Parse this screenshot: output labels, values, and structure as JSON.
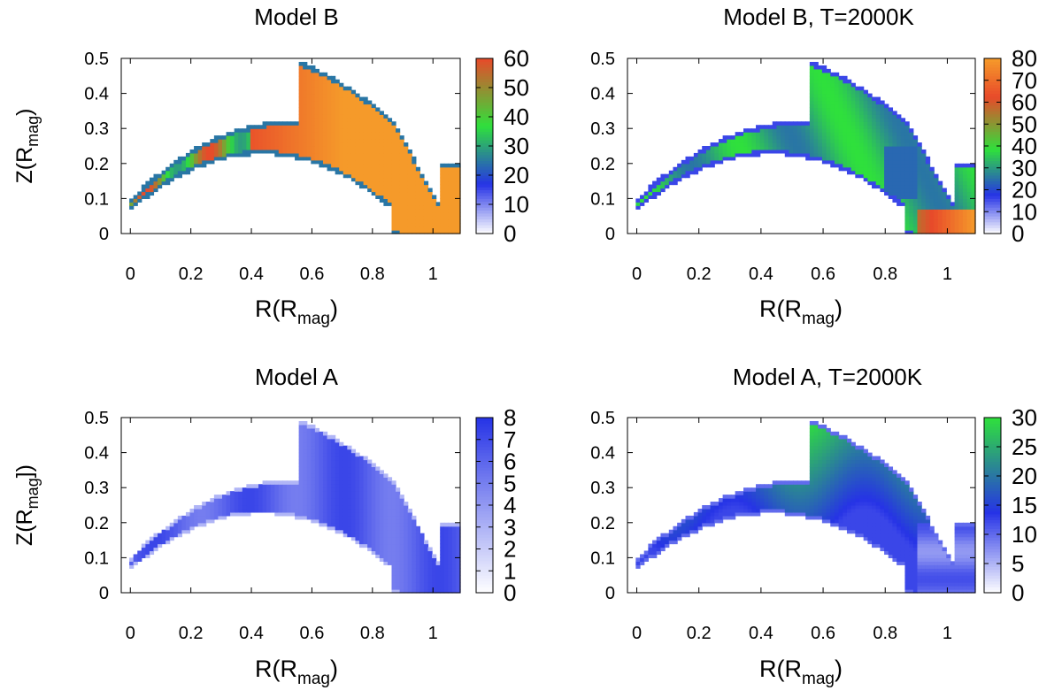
{
  "chart_data": [
    {
      "type": "heatmap",
      "title": "Model B",
      "xlabel": {
        "base": "R(R",
        "sub": "mag",
        "close": ")"
      },
      "ylabel": {
        "base": "Z(R",
        "sub": "mag",
        "close": ")"
      },
      "xlim": [
        -0.03,
        1.09
      ],
      "ylim": [
        0,
        0.5
      ],
      "xticks": [
        "0",
        "0.2",
        "0.4",
        "0.6",
        "0.8",
        "1"
      ],
      "yticks": [
        "0",
        "0.1",
        "0.2",
        "0.3",
        "0.4",
        "0.5"
      ],
      "colorbar": {
        "min": 0,
        "max": 60,
        "ticks": [
          "0",
          "10",
          "20",
          "30",
          "40",
          "50",
          "60"
        ]
      },
      "field": "modelB"
    },
    {
      "type": "heatmap",
      "title": "Model B, T=2000K",
      "xlabel": {
        "base": "R(R",
        "sub": "mag",
        "close": ")"
      },
      "ylabel": {
        "base": "",
        "sub": "",
        "close": ""
      },
      "xlim": [
        -0.03,
        1.09
      ],
      "ylim": [
        0,
        0.5
      ],
      "xticks": [
        "0",
        "0.2",
        "0.4",
        "0.6",
        "0.8",
        "1"
      ],
      "yticks": [
        "0",
        "0.1",
        "0.2",
        "0.3",
        "0.4",
        "0.5"
      ],
      "colorbar": {
        "min": 0,
        "max": 80,
        "ticks": [
          "0",
          "10",
          "20",
          "30",
          "40",
          "50",
          "60",
          "70",
          "80"
        ]
      },
      "field": "modelBT"
    },
    {
      "type": "heatmap",
      "title": "Model A",
      "xlabel": {
        "base": "R(R",
        "sub": "mag",
        "close": ")"
      },
      "ylabel": {
        "base": "Z(R",
        "sub": "mag",
        "close": "])"
      },
      "xlim": [
        -0.03,
        1.09
      ],
      "ylim": [
        0,
        0.5
      ],
      "xticks": [
        "0",
        "0.2",
        "0.4",
        "0.6",
        "0.8",
        "1"
      ],
      "yticks": [
        "0",
        "0.1",
        "0.2",
        "0.3",
        "0.4",
        "0.5"
      ],
      "colorbar": {
        "min": 0,
        "max": 8,
        "ticks": [
          "0",
          "1",
          "2",
          "3",
          "4",
          "5",
          "6",
          "7",
          "8"
        ]
      },
      "field": "modelA"
    },
    {
      "type": "heatmap",
      "title": "Model A, T=2000K",
      "xlabel": {
        "base": "R(R",
        "sub": "mag",
        "close": ")"
      },
      "ylabel": {
        "base": "",
        "sub": "",
        "close": ""
      },
      "xlim": [
        -0.03,
        1.09
      ],
      "ylim": [
        0,
        0.5
      ],
      "xticks": [
        "0",
        "0.2",
        "0.4",
        "0.6",
        "0.8",
        "1"
      ],
      "yticks": [
        "0",
        "0.1",
        "0.2",
        "0.3",
        "0.4",
        "0.5"
      ],
      "colorbar": {
        "min": 0,
        "max": 30,
        "ticks": [
          "0",
          "5",
          "10",
          "15",
          "20",
          "25",
          "30"
        ]
      },
      "field": "modelAT"
    }
  ],
  "colors": {
    "colormap_stops": [
      "#ffffff",
      "#2633e6",
      "#2fe03c",
      "#e84a2a",
      "#f59a2a"
    ]
  }
}
